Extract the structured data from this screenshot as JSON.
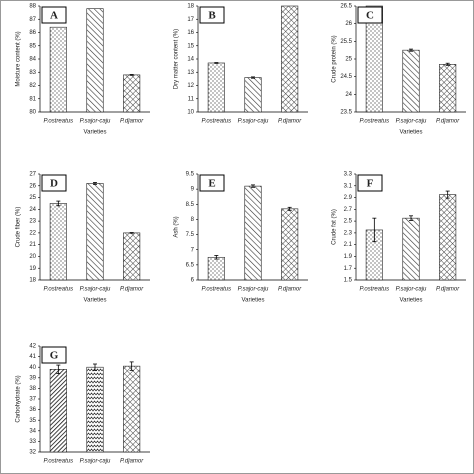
{
  "chart_data": [
    {
      "type": "bar",
      "panel_label": "A",
      "ylabel": "Moisture content (%)",
      "xlabel": "Varieties",
      "categories": [
        "P.ostreatus",
        "P.sajor-caju",
        "P.djamor"
      ],
      "values": [
        86.4,
        87.8,
        82.8
      ],
      "errors": [
        0,
        0,
        0.03
      ],
      "patterns": [
        "dots",
        "stripes",
        "cross"
      ],
      "ylim": [
        80,
        88
      ],
      "yticks": [
        80,
        81,
        82,
        83,
        84,
        85,
        86,
        87,
        88
      ]
    },
    {
      "type": "bar",
      "panel_label": "B",
      "ylabel": "Dry matter content (%)",
      "categories": [
        "P.ostreatus",
        "P.sajor-caju",
        "P.djamor"
      ],
      "values": [
        13.7,
        12.6,
        18
      ],
      "errors": [
        0.03,
        0.05,
        0
      ],
      "patterns": [
        "dots",
        "stripes",
        "cross"
      ],
      "ylim": [
        10,
        18
      ],
      "yticks": [
        10,
        11,
        12,
        13,
        14,
        15,
        16,
        17,
        18
      ]
    },
    {
      "type": "bar",
      "panel_label": "C",
      "ylabel": "Crude protein (%)",
      "xlabel": "Varieties",
      "categories": [
        "P.ostreatus",
        "P.sajor-caju",
        "P.djamor"
      ],
      "values": [
        26.5,
        25.25,
        24.85
      ],
      "errors": [
        0,
        0.03,
        0.03
      ],
      "patterns": [
        "dots",
        "stripes",
        "cross"
      ],
      "ylim": [
        23.5,
        26.5
      ],
      "yticks": [
        23.5,
        24,
        24.5,
        25,
        25.5,
        26,
        26.5
      ]
    },
    {
      "type": "bar",
      "panel_label": "D",
      "ylabel": "Crude fiber (%)",
      "xlabel": "Varieties",
      "categories": [
        "P.ostreatus",
        "P.sajor-caju",
        "P.djamor"
      ],
      "values": [
        24.5,
        26.2,
        22
      ],
      "errors": [
        0.2,
        0.08,
        0.03
      ],
      "patterns": [
        "dots",
        "stripes",
        "cross"
      ],
      "ylim": [
        18,
        27
      ],
      "yticks": [
        18,
        19,
        20,
        21,
        22,
        23,
        24,
        25,
        26,
        27
      ]
    },
    {
      "type": "bar",
      "panel_label": "E",
      "ylabel": "Ash (%)",
      "xlabel": "Varieties",
      "categories": [
        "P.ostreatus",
        "P.sajor-caju",
        "P.djamor"
      ],
      "values": [
        6.75,
        9.1,
        8.35
      ],
      "errors": [
        0.06,
        0.04,
        0.05
      ],
      "patterns": [
        "dots",
        "stripes",
        "cross"
      ],
      "ylim": [
        6,
        9.5
      ],
      "yticks": [
        6,
        6.5,
        7,
        7.5,
        8,
        8.5,
        9,
        9.5
      ]
    },
    {
      "type": "bar",
      "panel_label": "F",
      "ylabel": "Crude fat (%)",
      "xlabel": "Varieties",
      "categories": [
        "P.ostreatus",
        "P.sajor-caju",
        "P.djamor"
      ],
      "values": [
        2.35,
        2.55,
        2.95
      ],
      "errors": [
        0.2,
        0.04,
        0.06
      ],
      "patterns": [
        "dots",
        "stripes",
        "cross"
      ],
      "ylim": [
        1.5,
        3.3
      ],
      "yticks": [
        1.5,
        1.7,
        1.9,
        2.1,
        2.3,
        2.5,
        2.7,
        2.9,
        3.1,
        3.3
      ]
    },
    {
      "type": "bar",
      "panel_label": "G",
      "ylabel": "Carbohydrate (%)",
      "categories": [
        "P.ostreatus",
        "P.sajor-caju",
        "P.djamor"
      ],
      "values": [
        39.8,
        40,
        40.1
      ],
      "errors": [
        0.4,
        0.3,
        0.4
      ],
      "patterns": [
        "dense",
        "zigzag",
        "cross"
      ],
      "ylim": [
        32,
        42
      ],
      "yticks": [
        32,
        33,
        34,
        35,
        36,
        37,
        38,
        39,
        40,
        41,
        42
      ]
    }
  ]
}
